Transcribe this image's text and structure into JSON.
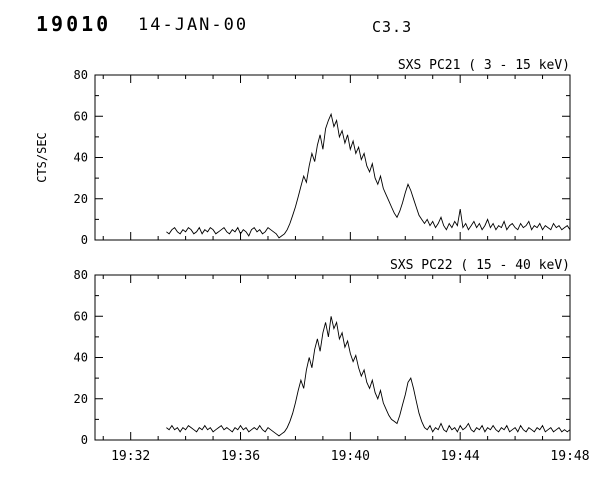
{
  "header": {
    "event_id": "19010",
    "date": "14-JAN-00",
    "goes_class": "C3.3"
  },
  "colors": {
    "foreground": "#000000",
    "background": "#ffffff"
  },
  "chart_data": [
    {
      "type": "line",
      "title": "SXS PC21 (  3 - 15 keV)",
      "ylabel": "CTS/SEC",
      "ylim": [
        0,
        80
      ],
      "y_ticks": [
        0,
        20,
        40,
        60,
        80
      ],
      "y_minor_step": 10,
      "x_min_minutes": 1170.7,
      "x_max_minutes": 1188,
      "x_minor_step_minutes": 1,
      "x_ticks_minutes": [
        1172,
        1176,
        1180,
        1184,
        1188
      ],
      "x_tick_labels": [
        "19:32",
        "19:36",
        "19:40",
        "19:44",
        "19:48"
      ],
      "show_x_labels": false,
      "x_start_minutes": 1173.3,
      "x_step_minutes": 0.1,
      "values": [
        4,
        3,
        5,
        6,
        4,
        3,
        5,
        4,
        6,
        5,
        3,
        4,
        6,
        3,
        5,
        4,
        6,
        5,
        3,
        4,
        5,
        6,
        4,
        3,
        5,
        4,
        6,
        3,
        5,
        4,
        2,
        5,
        6,
        4,
        5,
        3,
        4,
        6,
        5,
        4,
        3,
        1,
        2,
        3,
        5,
        8,
        12,
        16,
        21,
        26,
        31,
        28,
        36,
        42,
        38,
        46,
        51,
        44,
        54,
        58,
        61,
        55,
        58,
        50,
        53,
        47,
        51,
        44,
        48,
        42,
        45,
        39,
        42,
        36,
        33,
        37,
        30,
        27,
        31,
        25,
        22,
        19,
        16,
        13,
        11,
        14,
        18,
        23,
        27,
        24,
        20,
        16,
        12,
        10,
        8,
        10,
        7,
        9,
        6,
        8,
        11,
        7,
        5,
        8,
        6,
        9,
        7,
        15,
        6,
        8,
        5,
        7,
        9,
        6,
        8,
        5,
        7,
        10,
        6,
        8,
        5,
        7,
        6,
        9,
        5,
        7,
        8,
        6,
        5,
        8,
        6,
        7,
        9,
        5,
        7,
        6,
        8,
        5,
        7,
        6,
        5,
        8,
        6,
        7,
        5,
        6,
        7,
        5
      ]
    },
    {
      "type": "line",
      "title": "SXS PC22 (  15 - 40 keV)",
      "ylabel": "",
      "ylim": [
        0,
        80
      ],
      "y_ticks": [
        0,
        20,
        40,
        60,
        80
      ],
      "y_minor_step": 10,
      "x_min_minutes": 1170.7,
      "x_max_minutes": 1188,
      "x_minor_step_minutes": 1,
      "x_ticks_minutes": [
        1172,
        1176,
        1180,
        1184,
        1188
      ],
      "x_tick_labels": [
        "19:32",
        "19:36",
        "19:40",
        "19:44",
        "19:48"
      ],
      "show_x_labels": true,
      "x_start_minutes": 1173.3,
      "x_step_minutes": 0.1,
      "values": [
        6,
        5,
        7,
        5,
        6,
        4,
        6,
        5,
        7,
        6,
        5,
        4,
        6,
        5,
        7,
        5,
        6,
        4,
        5,
        6,
        7,
        5,
        6,
        5,
        4,
        6,
        5,
        7,
        5,
        6,
        4,
        5,
        6,
        5,
        7,
        5,
        4,
        6,
        5,
        4,
        3,
        2,
        3,
        4,
        6,
        9,
        13,
        18,
        24,
        29,
        25,
        34,
        40,
        35,
        44,
        49,
        43,
        52,
        57,
        50,
        60,
        54,
        57,
        49,
        52,
        45,
        48,
        42,
        38,
        41,
        35,
        31,
        34,
        28,
        25,
        29,
        23,
        20,
        24,
        18,
        15,
        12,
        10,
        9,
        8,
        12,
        17,
        22,
        28,
        30,
        25,
        19,
        13,
        9,
        6,
        5,
        7,
        4,
        6,
        5,
        8,
        5,
        4,
        7,
        5,
        6,
        4,
        7,
        5,
        6,
        8,
        5,
        4,
        6,
        5,
        7,
        4,
        6,
        5,
        7,
        5,
        4,
        6,
        5,
        7,
        4,
        5,
        6,
        4,
        7,
        5,
        4,
        6,
        5,
        4,
        6,
        5,
        7,
        4,
        5,
        6,
        4,
        5,
        6,
        4,
        5,
        4,
        5
      ]
    }
  ]
}
